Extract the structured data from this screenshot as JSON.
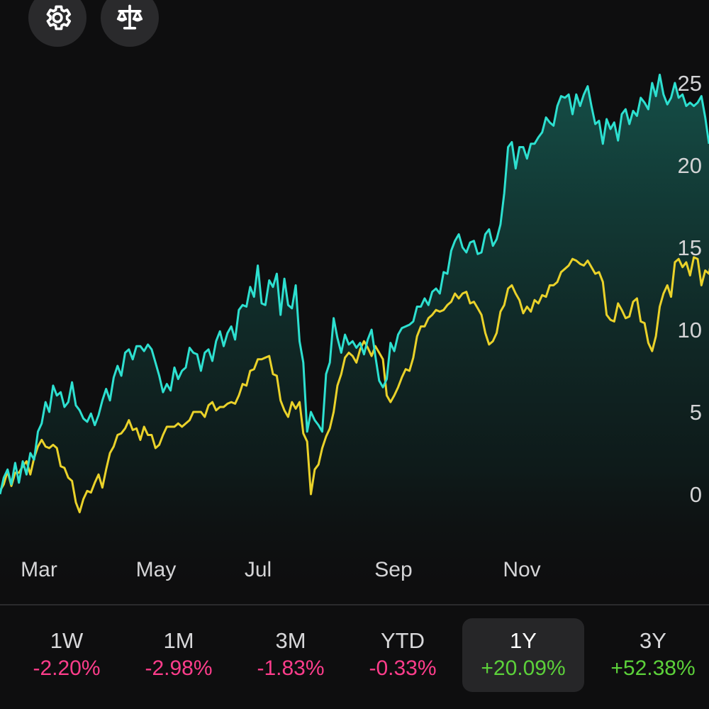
{
  "toolbar": {
    "settings_icon": "gear-icon",
    "compare_icon": "scale-icon"
  },
  "chart_data": {
    "type": "line",
    "x_tick_labels": [
      "Mar",
      "May",
      "Jul",
      "Sep",
      "Nov"
    ],
    "y_tick_labels": [
      "0",
      "5",
      "10",
      "15",
      "20",
      "25"
    ],
    "y_ticks": [
      0,
      5,
      10,
      15,
      20,
      25
    ],
    "ylim": [
      -3,
      30
    ],
    "grid": false,
    "y_axis_position": "right",
    "series": [
      {
        "color": "#2de0d0",
        "filled": true,
        "values": [
          0.0,
          1.0,
          1.5,
          0.6,
          1.9,
          0.7,
          2.0,
          1.2,
          2.5,
          2.1,
          3.8,
          4.3,
          5.6,
          5.0,
          6.6,
          6.0,
          6.2,
          5.3,
          5.6,
          6.8,
          5.4,
          5.1,
          4.6,
          4.4,
          4.9,
          4.2,
          4.8,
          5.7,
          6.4,
          5.7,
          7.1,
          7.8,
          7.2,
          8.6,
          8.8,
          8.2,
          9.0,
          9.0,
          8.7,
          9.1,
          8.8,
          8.0,
          7.2,
          6.2,
          6.7,
          6.3,
          7.7,
          7.0,
          7.5,
          7.7,
          8.9,
          8.6,
          8.5,
          7.5,
          8.6,
          8.8,
          8.1,
          9.3,
          9.9,
          9.0,
          9.8,
          10.2,
          9.4,
          11.2,
          11.5,
          11.4,
          12.6,
          12.0,
          13.9,
          11.6,
          11.5,
          13.0,
          12.6,
          13.4,
          10.9,
          13.1,
          11.5,
          11.3,
          12.7,
          9.3,
          8.0,
          3.8,
          5.0,
          4.5,
          4.2,
          3.8,
          7.3,
          8.0,
          10.7,
          9.5,
          8.6,
          9.7,
          9.1,
          9.3,
          8.9,
          9.2,
          8.5,
          9.4,
          10.0,
          8.4,
          6.9,
          6.5,
          7.0,
          9.2,
          8.7,
          9.7,
          10.1,
          10.2,
          10.3,
          10.5,
          11.4,
          11.4,
          11.9,
          11.5,
          12.3,
          12.5,
          12.2,
          13.5,
          13.4,
          14.8,
          15.4,
          15.8,
          15.0,
          14.7,
          15.3,
          15.4,
          14.6,
          14.7,
          15.8,
          16.1,
          15.1,
          15.5,
          16.4,
          18.3,
          21.1,
          21.4,
          19.8,
          21.1,
          21.1,
          20.4,
          21.3,
          21.3,
          21.7,
          22.0,
          22.9,
          22.6,
          22.4,
          23.6,
          24.2,
          24.1,
          24.3,
          23.1,
          24.3,
          23.6,
          24.3,
          24.8,
          23.6,
          22.5,
          22.7,
          21.3,
          22.8,
          22.2,
          22.6,
          21.5,
          23.1,
          23.4,
          22.5,
          23.3,
          23.0,
          24.1,
          23.8,
          23.4,
          25.0,
          24.2,
          25.5,
          24.3,
          23.7,
          24.1,
          25.0,
          24.1,
          24.3,
          23.6,
          23.8,
          23.6,
          23.8,
          24.2,
          22.9,
          21.3
        ]
      },
      {
        "color": "#ead22a",
        "filled": false,
        "values": [
          0.2,
          0.6,
          1.4,
          0.5,
          1.3,
          1.3,
          1.7,
          2.0,
          1.2,
          2.2,
          2.9,
          3.3,
          2.9,
          2.8,
          3.0,
          2.8,
          1.7,
          1.6,
          1.0,
          0.8,
          -0.5,
          -1.1,
          -0.3,
          0.2,
          0.1,
          0.7,
          1.2,
          0.4,
          1.5,
          2.5,
          2.9,
          3.6,
          3.7,
          4.0,
          4.5,
          3.9,
          4.0,
          3.3,
          4.1,
          3.6,
          3.6,
          2.8,
          3.0,
          3.6,
          4.1,
          4.1,
          4.1,
          4.3,
          4.1,
          4.3,
          4.5,
          5.0,
          5.0,
          5.0,
          4.7,
          5.4,
          5.6,
          5.1,
          5.3,
          5.3,
          5.5,
          5.6,
          5.5,
          6.0,
          6.7,
          6.6,
          7.5,
          7.6,
          8.2,
          8.2,
          8.3,
          8.4,
          7.3,
          7.2,
          5.7,
          5.1,
          4.7,
          5.6,
          5.2,
          5.6,
          3.7,
          3.2,
          0.0,
          1.5,
          1.8,
          2.8,
          3.5,
          4.0,
          5.0,
          6.6,
          7.3,
          8.3,
          8.6,
          8.4,
          8.0,
          8.8,
          9.3,
          8.9,
          8.4,
          9.0,
          8.6,
          8.2,
          6.0,
          5.6,
          6.0,
          6.5,
          7.1,
          7.6,
          7.5,
          8.3,
          9.6,
          10.2,
          10.2,
          10.7,
          10.9,
          11.2,
          11.1,
          11.2,
          11.5,
          11.7,
          12.2,
          11.9,
          12.2,
          12.3,
          11.6,
          11.7,
          11.3,
          10.9,
          9.8,
          9.1,
          9.3,
          9.8,
          11.1,
          11.5,
          12.5,
          12.7,
          12.2,
          11.8,
          11.0,
          11.4,
          11.1,
          11.8,
          11.6,
          12.1,
          12.0,
          12.7,
          12.7,
          12.9,
          13.5,
          13.7,
          13.9,
          14.3,
          14.2,
          14.0,
          13.9,
          14.2,
          13.8,
          13.4,
          13.5,
          12.9,
          10.9,
          10.6,
          10.5,
          11.6,
          11.2,
          10.7,
          10.8,
          11.7,
          11.9,
          10.5,
          10.4,
          9.2,
          8.7,
          9.6,
          11.4,
          12.2,
          12.7,
          12.0,
          14.1,
          14.3,
          13.8,
          14.1,
          13.3,
          14.4,
          14.3,
          12.7,
          13.6,
          13.4,
          14.7,
          14.9,
          15.1,
          14.8,
          15.5,
          15.3,
          16.2,
          15.8,
          14.7
        ]
      }
    ]
  },
  "periods": [
    {
      "label": "1W",
      "value": "-2.20%",
      "trend": "neg"
    },
    {
      "label": "1M",
      "value": "-2.98%",
      "trend": "neg"
    },
    {
      "label": "3M",
      "value": "-1.83%",
      "trend": "neg"
    },
    {
      "label": "YTD",
      "value": "-0.33%",
      "trend": "neg"
    },
    {
      "label": "1Y",
      "value": "+20.09%",
      "trend": "pos",
      "selected": true
    },
    {
      "label": "3Y",
      "value": "+52.38%",
      "trend": "pos"
    }
  ]
}
